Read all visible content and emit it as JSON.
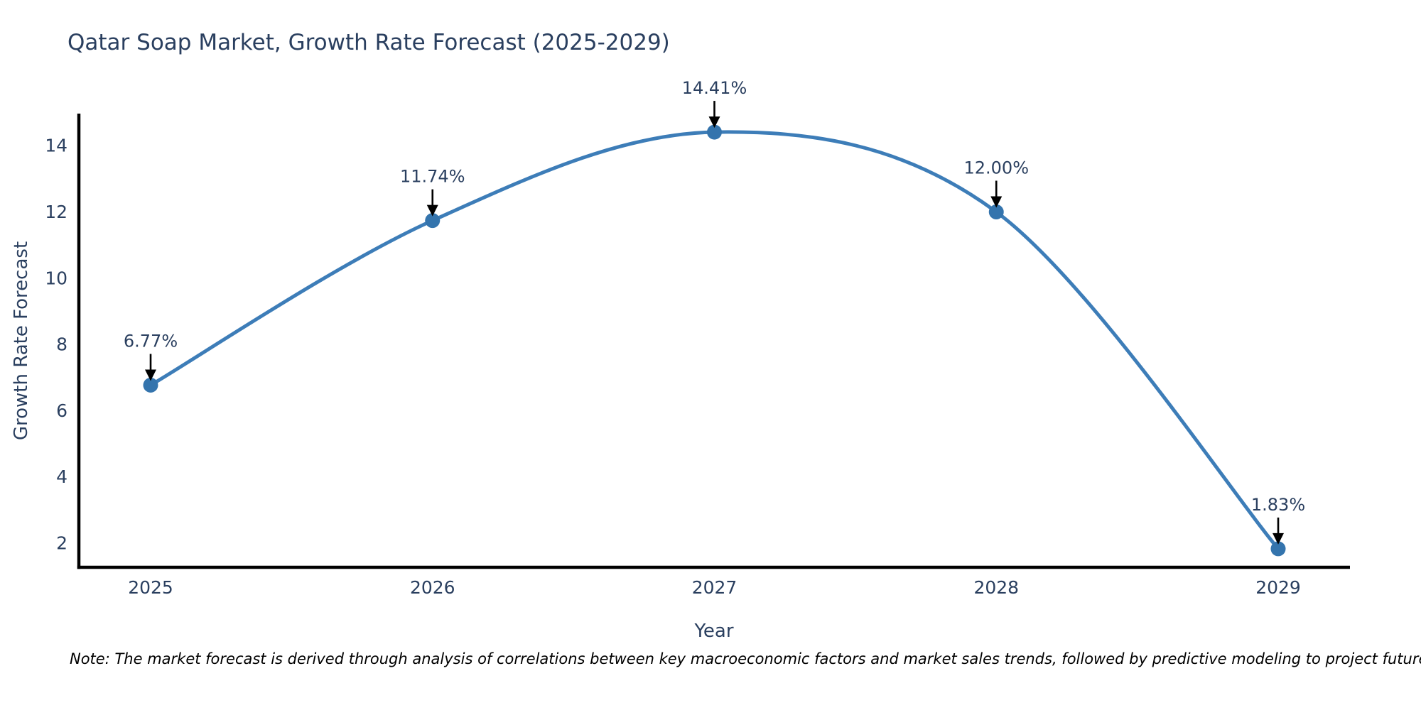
{
  "title": "Qatar Soap Market, Growth Rate Forecast (2025-2029)",
  "footnote": "Note: The market forecast is derived through analysis of correlations between key macroeconomic factors and market sales trends, followed by predictive modeling to project future sales",
  "chart_data": {
    "type": "line",
    "title": "Qatar Soap Market, Growth Rate Forecast (2025-2029)",
    "xlabel": "Year",
    "ylabel": "Growth Rate Forecast",
    "x": [
      2025,
      2026,
      2027,
      2028,
      2029
    ],
    "values": [
      6.77,
      11.74,
      14.41,
      12.0,
      1.83
    ],
    "point_labels": [
      "6.77%",
      "11.74%",
      "14.41%",
      "12.00%",
      "1.83%"
    ],
    "xticks": [
      "2025",
      "2026",
      "2027",
      "2028",
      "2029"
    ],
    "yticks": [
      2,
      4,
      6,
      8,
      10,
      12,
      14
    ],
    "xlim": [
      2024.74,
      2029.26
    ],
    "ylim": [
      1.27,
      14.97
    ],
    "line_shape": "spline",
    "grid": false,
    "legend": "none",
    "colors": {
      "line": "#3d7db8",
      "marker": "#3474ad",
      "axis": "#000000",
      "tick_text": "#2a3f5f",
      "annotation_text": "#2a3f5f",
      "annotation_arrow": "#000000"
    }
  }
}
